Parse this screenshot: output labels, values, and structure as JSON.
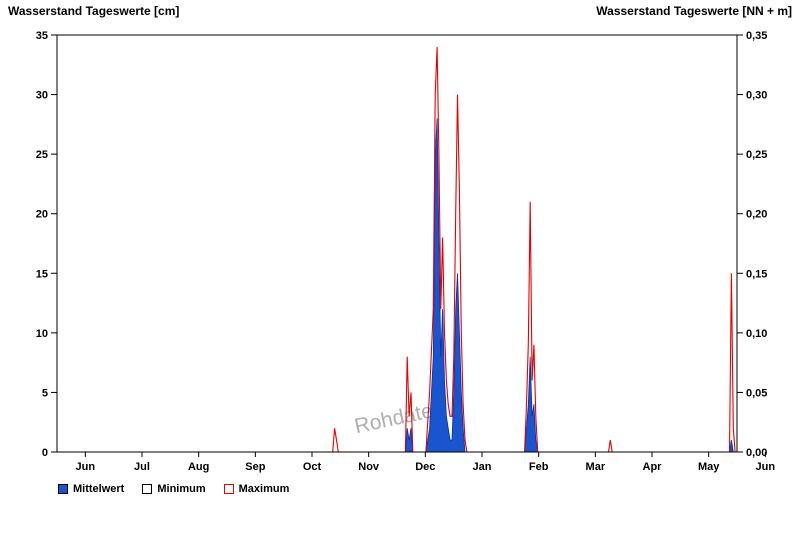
{
  "chart_data": {
    "type": "area",
    "title_left": "Wasserstand Tageswerte [cm]",
    "title_right": "Wasserstand Tageswerte [NN + m]",
    "watermark": "Rohdaten",
    "x_tick_labels": [
      "Jun",
      "Jul",
      "Aug",
      "Sep",
      "Oct",
      "Nov",
      "Dec",
      "Jan",
      "Feb",
      "Mar",
      "Apr",
      "May",
      "Jun"
    ],
    "x_range_days": [
      0,
      365
    ],
    "y_range": [
      0,
      35
    ],
    "y_tick_values": [
      0,
      5,
      10,
      15,
      20,
      25,
      30,
      35
    ],
    "y_left_tick_labels": [
      "0",
      "5",
      "10",
      "15",
      "20",
      "25",
      "30",
      "35"
    ],
    "y_right_tick_labels": [
      "0,00",
      "0,05",
      "0,10",
      "0,15",
      "0,20",
      "0,25",
      "0,30",
      "0,35"
    ],
    "grid": false,
    "legend_position": "bottom-left",
    "colors": {
      "mittelwert_fill": "#1a55d0",
      "mittelwert_stroke": "#0b2fa0",
      "maximum": "#e80000",
      "minimum": "#ffffff",
      "frame": "#000000",
      "watermark": "#9a9a9a"
    },
    "series": [
      {
        "name": "Minimum",
        "type": "line",
        "color": "#ffffff",
        "points": [
          [
            0,
            0
          ],
          [
            365,
            0
          ]
        ]
      },
      {
        "name": "Mittelwert",
        "type": "area",
        "color": "#1a55d0",
        "stroke": "#0b2fa0",
        "points": [
          [
            0,
            0
          ],
          [
            187,
            0
          ],
          [
            188,
            2
          ],
          [
            189,
            1
          ],
          [
            190,
            2
          ],
          [
            191,
            0
          ],
          [
            198,
            0
          ],
          [
            200,
            2
          ],
          [
            202,
            8
          ],
          [
            203,
            25
          ],
          [
            204,
            28
          ],
          [
            205,
            18
          ],
          [
            206,
            8
          ],
          [
            207,
            12
          ],
          [
            208,
            6
          ],
          [
            209,
            3
          ],
          [
            210,
            2
          ],
          [
            211,
            1
          ],
          [
            212,
            1
          ],
          [
            213,
            5
          ],
          [
            214,
            12
          ],
          [
            215,
            15
          ],
          [
            216,
            10
          ],
          [
            217,
            5
          ],
          [
            218,
            2
          ],
          [
            219,
            0
          ],
          [
            251,
            0
          ],
          [
            252,
            2
          ],
          [
            253,
            4
          ],
          [
            254,
            8
          ],
          [
            255,
            3
          ],
          [
            256,
            4
          ],
          [
            257,
            1
          ],
          [
            258,
            0
          ],
          [
            361,
            0
          ],
          [
            362,
            1
          ],
          [
            363,
            0
          ],
          [
            365,
            0
          ]
        ]
      },
      {
        "name": "Maximum",
        "type": "line",
        "color": "#e80000",
        "points": [
          [
            0,
            0
          ],
          [
            148,
            0
          ],
          [
            149,
            2
          ],
          [
            150,
            1
          ],
          [
            151,
            0
          ],
          [
            187,
            0
          ],
          [
            188,
            8
          ],
          [
            189,
            3
          ],
          [
            190,
            5
          ],
          [
            191,
            0
          ],
          [
            198,
            0
          ],
          [
            200,
            5
          ],
          [
            202,
            12
          ],
          [
            203,
            30
          ],
          [
            204,
            34
          ],
          [
            205,
            25
          ],
          [
            206,
            12
          ],
          [
            207,
            18
          ],
          [
            208,
            10
          ],
          [
            209,
            6
          ],
          [
            210,
            4
          ],
          [
            211,
            3
          ],
          [
            212,
            3
          ],
          [
            213,
            8
          ],
          [
            214,
            20
          ],
          [
            215,
            30
          ],
          [
            216,
            22
          ],
          [
            217,
            10
          ],
          [
            218,
            4
          ],
          [
            219,
            1
          ],
          [
            220,
            0
          ],
          [
            251,
            0
          ],
          [
            252,
            4
          ],
          [
            253,
            9
          ],
          [
            254,
            21
          ],
          [
            255,
            6
          ],
          [
            256,
            9
          ],
          [
            257,
            3
          ],
          [
            258,
            0
          ],
          [
            296,
            0
          ],
          [
            297,
            1
          ],
          [
            298,
            0
          ],
          [
            361,
            0
          ],
          [
            362,
            15
          ],
          [
            363,
            2
          ],
          [
            364,
            0
          ],
          [
            365,
            0
          ]
        ]
      }
    ],
    "legend": [
      {
        "label": "Mittelwert",
        "fill": "#1a55d0",
        "border": "#000000"
      },
      {
        "label": "Minimum",
        "fill": "#ffffff",
        "border": "#000000"
      },
      {
        "label": "Maximum",
        "fill": "#ffffff",
        "border": "#e80000"
      }
    ]
  }
}
